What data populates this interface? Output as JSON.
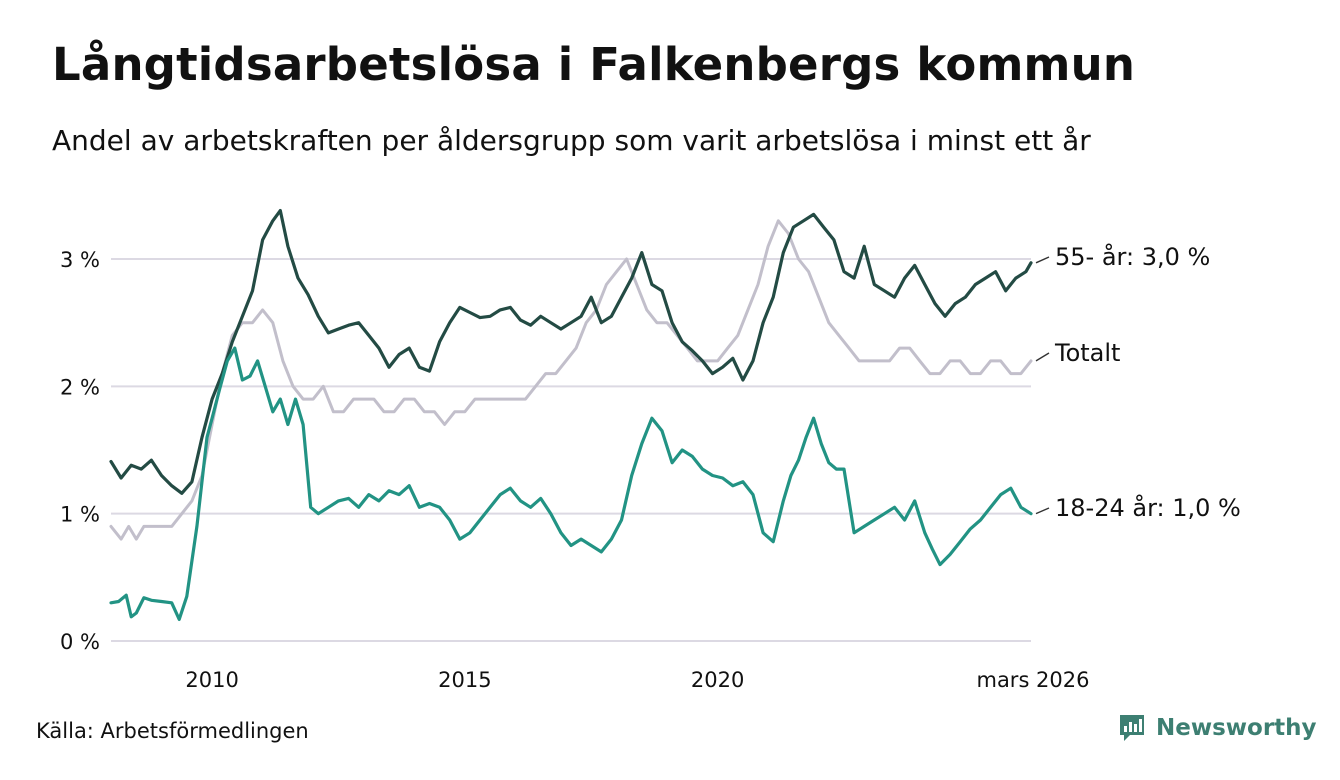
{
  "chart_data": {
    "type": "line",
    "title": "Långtidsarbetslösa i Falkenbergs kommun",
    "subtitle": "Andel av arbetskraften per åldersgrupp som varit arbetslösa i minst ett år",
    "xlabel": "",
    "ylabel": "",
    "x_range": [
      2008.0,
      2026.2
    ],
    "ylim": [
      0,
      3.5
    ],
    "y_ticks": [
      {
        "value": 0,
        "label": "0 %"
      },
      {
        "value": 1,
        "label": "1 %"
      },
      {
        "value": 2,
        "label": "2 %"
      },
      {
        "value": 3,
        "label": "3 %"
      }
    ],
    "x_ticks": [
      {
        "value": 2010,
        "label": "2010"
      },
      {
        "value": 2015,
        "label": "2015"
      },
      {
        "value": 2020,
        "label": "2020"
      },
      {
        "value": 2026.2,
        "label": "mars 2026"
      }
    ],
    "grid": true,
    "legend": "direct labels at line ends (right)",
    "series": [
      {
        "name": "Totalt",
        "end_label": "Totalt",
        "color": "#c2bfcb",
        "x": [
          2008.0,
          2008.2,
          2008.35,
          2008.5,
          2008.65,
          2008.8,
          2009.0,
          2009.2,
          2009.4,
          2009.6,
          2009.8,
          2010.0,
          2010.2,
          2010.4,
          2010.6,
          2010.8,
          2011.0,
          2011.2,
          2011.4,
          2011.6,
          2011.8,
          2012.0,
          2012.2,
          2012.4,
          2012.6,
          2012.8,
          2013.0,
          2013.2,
          2013.4,
          2013.6,
          2013.8,
          2014.0,
          2014.2,
          2014.4,
          2014.6,
          2014.8,
          2015.0,
          2015.2,
          2015.4,
          2015.6,
          2015.8,
          2016.0,
          2016.2,
          2016.4,
          2016.6,
          2016.8,
          2017.0,
          2017.2,
          2017.4,
          2017.6,
          2017.8,
          2018.0,
          2018.2,
          2018.4,
          2018.6,
          2018.8,
          2019.0,
          2019.2,
          2019.4,
          2019.6,
          2019.8,
          2020.0,
          2020.2,
          2020.4,
          2020.6,
          2020.8,
          2021.0,
          2021.2,
          2021.4,
          2021.6,
          2021.8,
          2022.0,
          2022.2,
          2022.4,
          2022.6,
          2022.8,
          2023.0,
          2023.2,
          2023.4,
          2023.6,
          2023.8,
          2024.0,
          2024.2,
          2024.4,
          2024.6,
          2024.8,
          2025.0,
          2025.2,
          2025.4,
          2025.6,
          2025.8,
          2026.0,
          2026.2
        ],
        "values": [
          0.9,
          0.8,
          0.9,
          0.8,
          0.9,
          0.9,
          0.9,
          0.9,
          1.0,
          1.1,
          1.3,
          1.7,
          2.1,
          2.4,
          2.5,
          2.5,
          2.6,
          2.5,
          2.2,
          2.0,
          1.9,
          1.9,
          2.0,
          1.8,
          1.8,
          1.9,
          1.9,
          1.9,
          1.8,
          1.8,
          1.9,
          1.9,
          1.8,
          1.8,
          1.7,
          1.8,
          1.8,
          1.9,
          1.9,
          1.9,
          1.9,
          1.9,
          1.9,
          2.0,
          2.1,
          2.1,
          2.2,
          2.3,
          2.5,
          2.6,
          2.8,
          2.9,
          3.0,
          2.8,
          2.6,
          2.5,
          2.5,
          2.4,
          2.3,
          2.2,
          2.2,
          2.2,
          2.3,
          2.4,
          2.6,
          2.8,
          3.1,
          3.3,
          3.2,
          3.0,
          2.9,
          2.7,
          2.5,
          2.4,
          2.3,
          2.2,
          2.2,
          2.2,
          2.2,
          2.3,
          2.3,
          2.2,
          2.1,
          2.1,
          2.2,
          2.2,
          2.1,
          2.1,
          2.2,
          2.2,
          2.1,
          2.1,
          2.2
        ]
      },
      {
        "name": "55- år",
        "end_label": "55- år: 3,0 %",
        "color": "#234b44",
        "x": [
          2008.0,
          2008.2,
          2008.4,
          2008.6,
          2008.8,
          2009.0,
          2009.2,
          2009.4,
          2009.6,
          2009.8,
          2010.0,
          2010.2,
          2010.4,
          2010.6,
          2010.8,
          2011.0,
          2011.2,
          2011.35,
          2011.5,
          2011.7,
          2011.9,
          2012.1,
          2012.3,
          2012.5,
          2012.7,
          2012.9,
          2013.1,
          2013.3,
          2013.5,
          2013.7,
          2013.9,
          2014.1,
          2014.3,
          2014.5,
          2014.7,
          2014.9,
          2015.1,
          2015.3,
          2015.5,
          2015.7,
          2015.9,
          2016.1,
          2016.3,
          2016.5,
          2016.7,
          2016.9,
          2017.1,
          2017.3,
          2017.5,
          2017.7,
          2017.9,
          2018.1,
          2018.3,
          2018.5,
          2018.7,
          2018.9,
          2019.1,
          2019.3,
          2019.5,
          2019.7,
          2019.9,
          2020.1,
          2020.3,
          2020.5,
          2020.7,
          2020.9,
          2021.1,
          2021.3,
          2021.5,
          2021.7,
          2021.9,
          2022.1,
          2022.3,
          2022.5,
          2022.7,
          2022.9,
          2023.1,
          2023.3,
          2023.5,
          2023.7,
          2023.9,
          2024.1,
          2024.3,
          2024.5,
          2024.7,
          2024.9,
          2025.1,
          2025.3,
          2025.5,
          2025.7,
          2025.9,
          2026.1,
          2026.2
        ],
        "values": [
          1.41,
          1.28,
          1.38,
          1.35,
          1.42,
          1.3,
          1.22,
          1.16,
          1.25,
          1.6,
          1.9,
          2.1,
          2.35,
          2.55,
          2.75,
          3.15,
          3.3,
          3.38,
          3.1,
          2.85,
          2.72,
          2.55,
          2.42,
          2.45,
          2.48,
          2.5,
          2.4,
          2.3,
          2.15,
          2.25,
          2.3,
          2.15,
          2.12,
          2.35,
          2.5,
          2.62,
          2.58,
          2.54,
          2.55,
          2.6,
          2.62,
          2.52,
          2.48,
          2.55,
          2.5,
          2.45,
          2.5,
          2.55,
          2.7,
          2.5,
          2.55,
          2.7,
          2.85,
          3.05,
          2.8,
          2.75,
          2.5,
          2.35,
          2.28,
          2.2,
          2.1,
          2.15,
          2.22,
          2.05,
          2.2,
          2.5,
          2.7,
          3.05,
          3.25,
          3.3,
          3.35,
          3.25,
          3.15,
          2.9,
          2.85,
          3.1,
          2.8,
          2.75,
          2.7,
          2.85,
          2.95,
          2.8,
          2.65,
          2.55,
          2.65,
          2.7,
          2.8,
          2.85,
          2.9,
          2.75,
          2.85,
          2.9,
          2.97
        ]
      },
      {
        "name": "18-24 år",
        "end_label": "18-24 år: 1,0 %",
        "color": "#229384",
        "x": [
          2008.0,
          2008.15,
          2008.3,
          2008.4,
          2008.5,
          2008.65,
          2008.8,
          2009.0,
          2009.2,
          2009.35,
          2009.5,
          2009.7,
          2009.9,
          2010.0,
          2010.15,
          2010.3,
          2010.45,
          2010.6,
          2010.75,
          2010.9,
          2011.05,
          2011.2,
          2011.35,
          2011.5,
          2011.65,
          2011.8,
          2011.95,
          2012.1,
          2012.3,
          2012.5,
          2012.7,
          2012.9,
          2013.1,
          2013.3,
          2013.5,
          2013.7,
          2013.9,
          2014.1,
          2014.3,
          2014.5,
          2014.7,
          2014.9,
          2015.1,
          2015.3,
          2015.5,
          2015.7,
          2015.9,
          2016.1,
          2016.3,
          2016.5,
          2016.7,
          2016.9,
          2017.1,
          2017.3,
          2017.5,
          2017.7,
          2017.9,
          2018.1,
          2018.3,
          2018.5,
          2018.7,
          2018.9,
          2019.1,
          2019.3,
          2019.5,
          2019.7,
          2019.9,
          2020.1,
          2020.3,
          2020.5,
          2020.7,
          2020.9,
          2021.1,
          2021.3,
          2021.45,
          2021.6,
          2021.75,
          2021.9,
          2022.05,
          2022.2,
          2022.35,
          2022.5,
          2022.7,
          2022.9,
          2023.1,
          2023.3,
          2023.5,
          2023.7,
          2023.9,
          2024.1,
          2024.25,
          2024.4,
          2024.6,
          2024.8,
          2025.0,
          2025.2,
          2025.4,
          2025.6,
          2025.8,
          2026.0,
          2026.2
        ],
        "values": [
          0.3,
          0.31,
          0.36,
          0.19,
          0.22,
          0.34,
          0.32,
          0.31,
          0.3,
          0.17,
          0.35,
          0.9,
          1.6,
          1.75,
          1.98,
          2.2,
          2.3,
          2.05,
          2.08,
          2.2,
          2.0,
          1.8,
          1.9,
          1.7,
          1.9,
          1.7,
          1.05,
          1.0,
          1.05,
          1.1,
          1.12,
          1.05,
          1.15,
          1.1,
          1.18,
          1.15,
          1.22,
          1.05,
          1.08,
          1.05,
          0.95,
          0.8,
          0.85,
          0.95,
          1.05,
          1.15,
          1.2,
          1.1,
          1.05,
          1.12,
          1.0,
          0.85,
          0.75,
          0.8,
          0.75,
          0.7,
          0.8,
          0.95,
          1.3,
          1.55,
          1.75,
          1.65,
          1.4,
          1.5,
          1.45,
          1.35,
          1.3,
          1.28,
          1.22,
          1.25,
          1.15,
          0.85,
          0.78,
          1.1,
          1.3,
          1.42,
          1.6,
          1.75,
          1.55,
          1.4,
          1.35,
          1.35,
          0.85,
          0.9,
          0.95,
          1.0,
          1.05,
          0.95,
          1.1,
          0.85,
          0.72,
          0.6,
          0.68,
          0.78,
          0.88,
          0.95,
          1.05,
          1.15,
          1.2,
          1.05,
          1.0
        ]
      }
    ]
  },
  "footer": {
    "source": "Källa: Arbetsförmedlingen",
    "brand": "Newsworthy"
  },
  "colors": {
    "grid": "#dcd9e3",
    "brand": "#3d7f72"
  }
}
